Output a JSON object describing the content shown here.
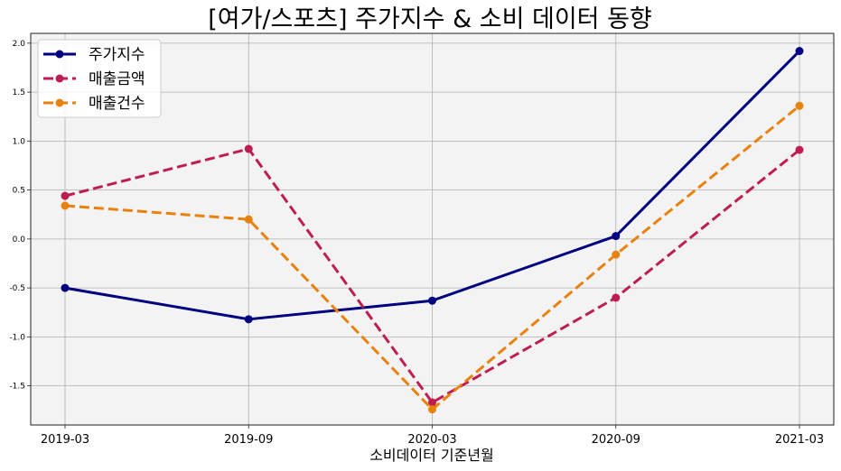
{
  "chart_data": {
    "type": "line",
    "title": "[여가/스포츠] 주가지수 & 소비 데이터 동향",
    "xlabel": "소비데이터 기준년월",
    "ylabel": "",
    "categories": [
      "2019-03",
      "2019-09",
      "2020-03",
      "2020-09",
      "2021-03"
    ],
    "ylim": [
      -1.9,
      2.1
    ],
    "yticks": [
      -1.5,
      -1.0,
      -0.5,
      0.0,
      0.5,
      1.0,
      1.5,
      2.0
    ],
    "ytick_labels": [
      "-1.5",
      "-1.0",
      "-0.5",
      "0.0",
      "0.5",
      "1.0",
      "1.5",
      "2.0"
    ],
    "grid": true,
    "legend_position": "top-left",
    "background": "#f3f3f3",
    "series": [
      {
        "name": "주가지수",
        "values": [
          -0.5,
          -0.82,
          -0.63,
          0.03,
          1.92
        ],
        "color": "#000080",
        "dash": "solid"
      },
      {
        "name": "매출금액",
        "values": [
          0.44,
          0.92,
          -1.67,
          -0.6,
          0.91
        ],
        "color": "#be1e4f",
        "dash": "dashed"
      },
      {
        "name": "매출건수",
        "values": [
          0.34,
          0.2,
          -1.74,
          -0.16,
          1.36
        ],
        "color": "#e8820c",
        "dash": "dashed"
      }
    ]
  }
}
